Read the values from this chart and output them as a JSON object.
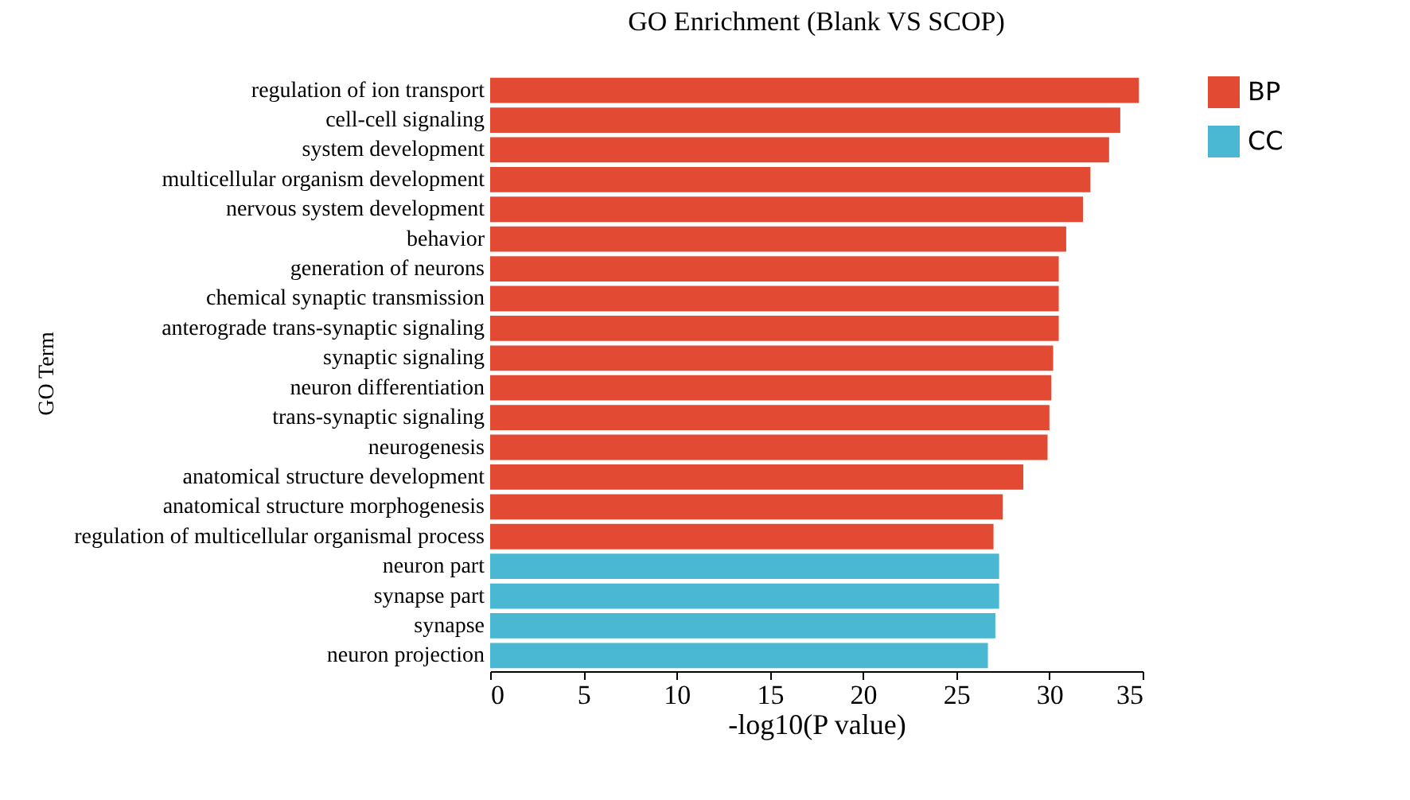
{
  "chart_data": {
    "type": "bar",
    "orientation": "horizontal",
    "title": "GO Enrichment (Blank VS SCOP)",
    "xlabel": "-log10(P value)",
    "ylabel": "GO Term",
    "categories": [
      "regulation of ion transport",
      "cell-cell signaling",
      "system development",
      "multicellular organism development",
      "nervous system development",
      "behavior",
      "generation of neurons",
      "chemical synaptic transmission",
      "anterograde trans-synaptic signaling",
      "synaptic signaling",
      "neuron differentiation",
      "trans-synaptic signaling",
      "neurogenesis",
      "anatomical structure development",
      "anatomical structure morphogenesis",
      "regulation of multicellular organismal process",
      "neuron part",
      "synapse part",
      "synapse",
      "neuron projection"
    ],
    "series": [
      {
        "name": "BP",
        "color": "#e34a33",
        "values": [
          34.8,
          33.8,
          33.2,
          32.2,
          31.8,
          30.9,
          30.5,
          30.5,
          30.5,
          30.2,
          30.1,
          30.0,
          29.9,
          28.6,
          27.5,
          27.0,
          null,
          null,
          null,
          null
        ]
      },
      {
        "name": "CC",
        "color": "#4ab8d2",
        "values": [
          null,
          null,
          null,
          null,
          null,
          null,
          null,
          null,
          null,
          null,
          null,
          null,
          null,
          null,
          null,
          null,
          27.3,
          27.3,
          27.1,
          26.7
        ]
      }
    ],
    "xlim": [
      0,
      35
    ],
    "xticks": [
      0,
      5,
      10,
      15,
      20,
      25,
      30,
      35
    ],
    "grid": false,
    "legend": "top right"
  }
}
